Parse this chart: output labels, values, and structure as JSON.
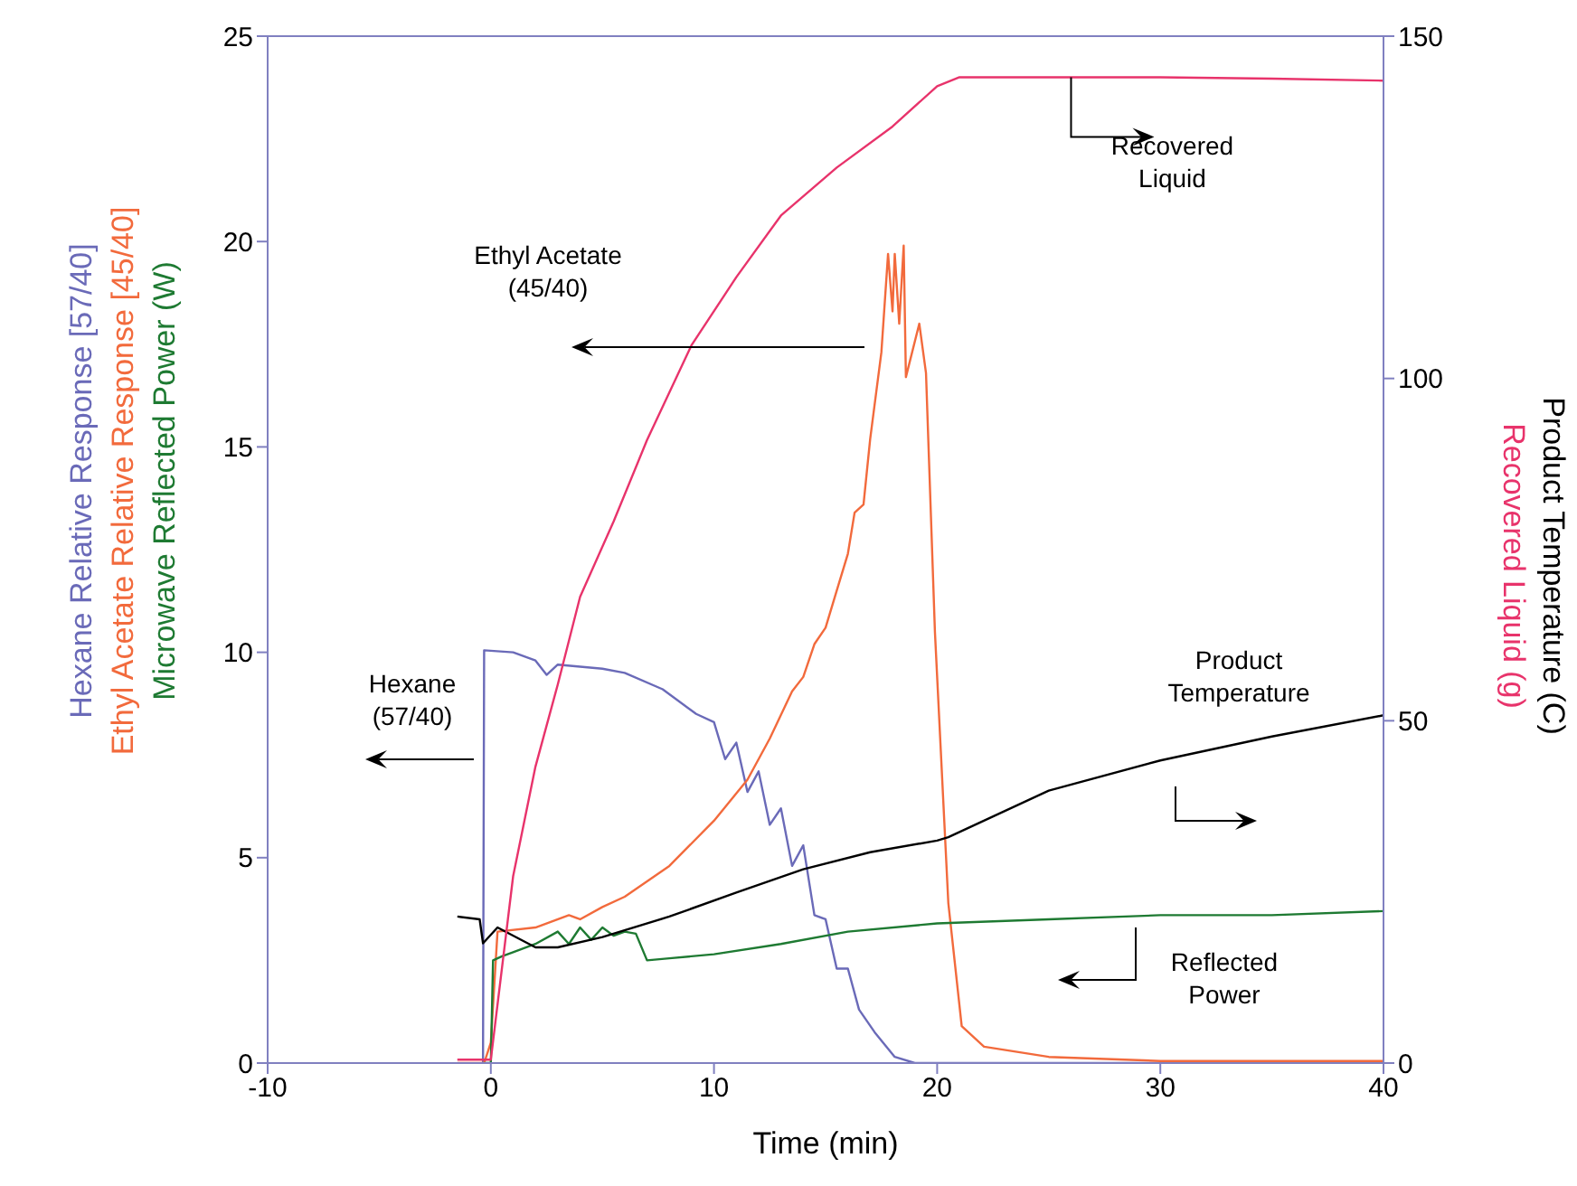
{
  "chart_data": {
    "type": "line",
    "xlabel": "Time (min)",
    "ylabel": "Hexane Relative Response [57/40]\nEthyl Acetate Relative Response [45/40]\nMicrowave Reflected Power (W)",
    "y2label": "Product Temperature (C)\nRecovered Liquid (g)",
    "xlim": [
      -10,
      40
    ],
    "xticks": [
      -10,
      0,
      10,
      20,
      30,
      40
    ],
    "ylim": [
      0,
      25
    ],
    "yticks": [
      0,
      5,
      10,
      15,
      20,
      25
    ],
    "y2lim": [
      0,
      150
    ],
    "y2ticks": [
      0,
      50,
      100,
      150
    ],
    "marker": "none",
    "line_style": "solid",
    "series": [
      {
        "color": "#6a6ab8",
        "x": [
          -0.4,
          -0.35,
          -0.3,
          1,
          2,
          2.5,
          3,
          5,
          6,
          7.7,
          9.2,
          10,
          10.5,
          11,
          11.5,
          12,
          12.5,
          13,
          13.5,
          14,
          14.5,
          15,
          15.5,
          16,
          16.5,
          17.2,
          18.1,
          19,
          25,
          30,
          40
        ],
        "values": [
          0,
          0,
          10.05,
          10.0,
          9.8,
          9.45,
          9.7,
          9.6,
          9.5,
          9.1,
          8.5,
          8.3,
          7.4,
          7.8,
          6.6,
          7.1,
          5.8,
          6.2,
          4.8,
          5.3,
          3.6,
          3.5,
          2.3,
          2.3,
          1.3,
          0.75,
          0.15,
          0,
          0,
          0,
          0
        ]
      },
      {
        "color": "#f26a3c",
        "x": [
          -1.5,
          -0.3,
          0,
          0.3,
          2,
          3.5,
          4,
          5,
          6,
          8,
          10,
          11.5,
          12.5,
          13.5,
          14,
          14.5,
          15,
          15.5,
          16,
          16.3,
          16.7,
          17,
          17.5,
          17.8,
          18.0,
          18.1,
          18.3,
          18.5,
          18.6,
          19.2,
          19.5,
          19.9,
          20.5,
          21.1,
          22.1,
          25,
          30,
          40
        ],
        "values": [
          0,
          0,
          0.5,
          3.2,
          3.3,
          3.6,
          3.5,
          3.8,
          4.05,
          4.8,
          5.9,
          6.9,
          7.9,
          9.05,
          9.4,
          10.2,
          10.6,
          11.5,
          12.4,
          13.4,
          13.6,
          15.2,
          17.3,
          19.7,
          18.3,
          19.7,
          18.0,
          19.9,
          16.7,
          18.0,
          16.8,
          10.5,
          3.9,
          0.9,
          0.4,
          0.15,
          0.05,
          0.05
        ]
      },
      {
        "color": "#1e7a32",
        "x": [
          -0.3,
          0,
          0.1,
          0.5,
          1,
          2,
          3,
          3.5,
          4,
          4.5,
          5,
          5.5,
          6,
          6.5,
          7,
          8,
          10,
          13,
          16,
          20,
          25,
          30,
          35,
          40
        ],
        "values": [
          0,
          0,
          2.5,
          2.6,
          2.7,
          2.9,
          3.2,
          2.9,
          3.3,
          3.0,
          3.3,
          3.1,
          3.2,
          3.15,
          2.5,
          2.55,
          2.65,
          2.9,
          3.2,
          3.4,
          3.5,
          3.6,
          3.6,
          3.7
        ]
      },
      {
        "color": "#000000",
        "axis": "y2",
        "x": [
          -1.5,
          -0.5,
          -0.35,
          0.3,
          2,
          3,
          5,
          8,
          11,
          14,
          17,
          20,
          20.5,
          25,
          30,
          35,
          40
        ],
        "values": [
          21.4,
          21,
          17.5,
          19.8,
          16.9,
          16.9,
          18.4,
          21.4,
          24.9,
          28.3,
          30.8,
          32.5,
          33,
          39.8,
          44.2,
          47.7,
          50.8
        ]
      },
      {
        "color": "#e8336b",
        "axis": "y2",
        "x": [
          -1.5,
          -0.3,
          0,
          1,
          2,
          3,
          4,
          5.5,
          7,
          9,
          11,
          13,
          15.5,
          18,
          20,
          21,
          25,
          30,
          35,
          40
        ],
        "values": [
          0.5,
          0.5,
          0.5,
          27.3,
          43.3,
          55.3,
          68.1,
          79.1,
          91,
          104.9,
          114.8,
          123.8,
          130.8,
          136.8,
          142.7,
          144,
          144,
          144,
          143.8,
          143.5
        ]
      }
    ],
    "annotations": [
      "Hexane\n(57/40)",
      "Ethyl Acetate\n(45/40)",
      {
        "text": "Recovered\nLiquid",
        "x": 26,
        "y": 24
      },
      "Product\nTemperature",
      "Reflected\nPower"
    ]
  }
}
